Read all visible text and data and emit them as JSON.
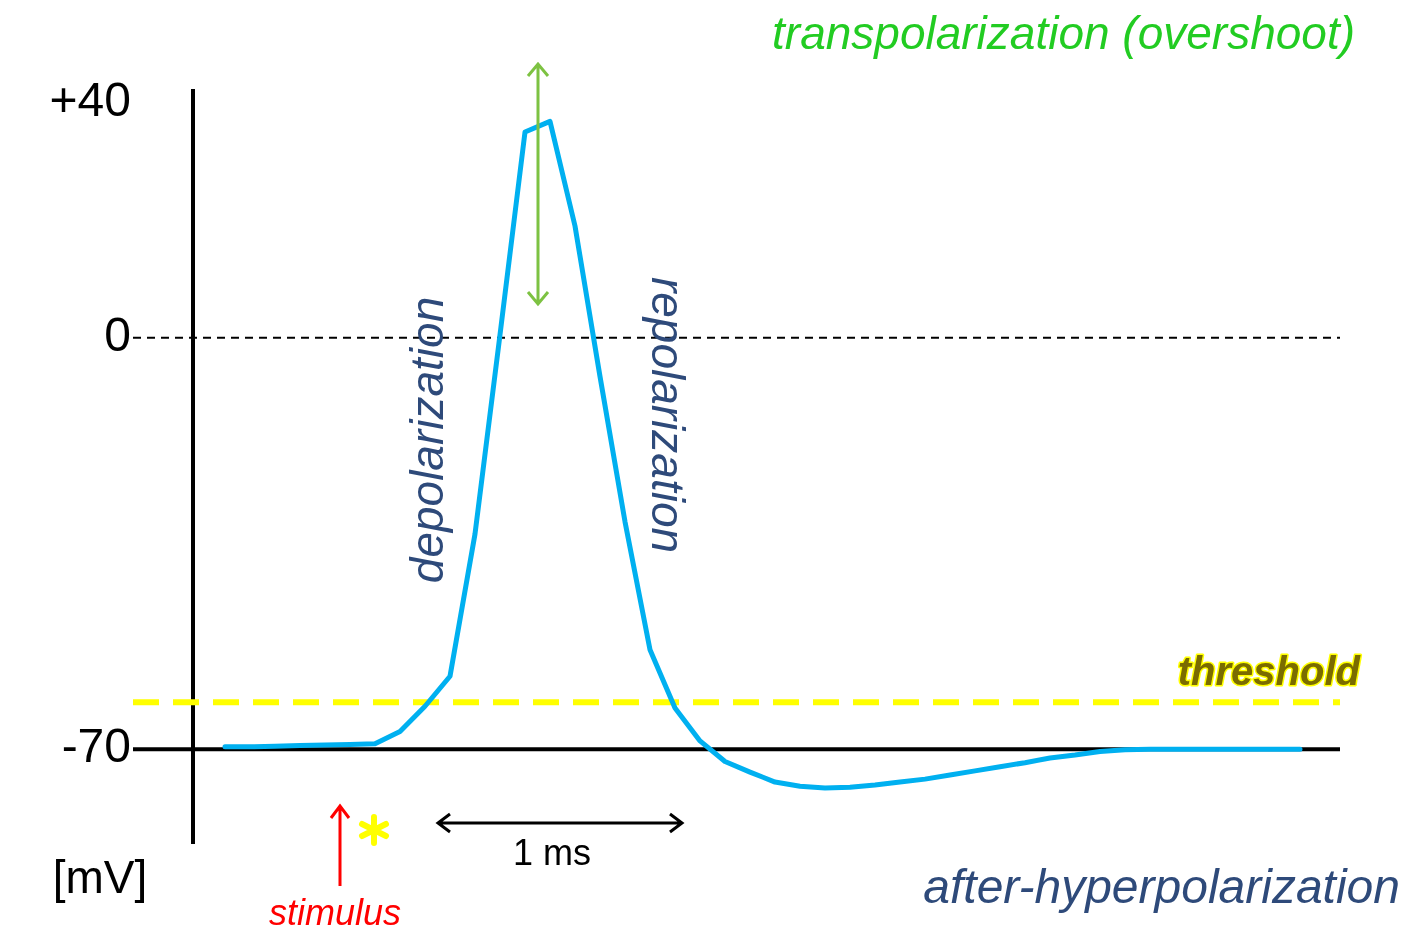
{
  "chart_data": {
    "type": "line",
    "categories": [
      null,
      null,
      null,
      null,
      null,
      null,
      null,
      null,
      null,
      null,
      null,
      null,
      null,
      null,
      null,
      null,
      null,
      null,
      null,
      null,
      null,
      null,
      null,
      null,
      null,
      null,
      null,
      null,
      null,
      null,
      null,
      null,
      null,
      null,
      null,
      null,
      null,
      null,
      null,
      null,
      null,
      null,
      null,
      null
    ],
    "series": [
      {
        "color": "#00b0f0",
        "values": [
          -69.6,
          -69.6,
          -69.5,
          -69.4,
          -69.3,
          -69.2,
          -69.1,
          -67,
          -62.7,
          -57.6,
          -33.4,
          0.5,
          35,
          36.8,
          19,
          -6.6,
          -31.3,
          -53.1,
          -63,
          -68.6,
          -72.1,
          -73.9,
          -75.6,
          -76.3,
          -76.6,
          -76.5,
          -76.1,
          -75.6,
          -75.1,
          -74.4,
          -73.7,
          -73,
          -72.3,
          -71.5,
          -71,
          -70.4,
          -70.1,
          -70,
          -70,
          -70,
          -70,
          -70,
          -70,
          -70
        ]
      }
    ],
    "ylim": [
      -86,
      42
    ],
    "yticks": [
      {
        "value": 40,
        "label": "+40"
      },
      0,
      -70
    ],
    "ylabel": "[mV]",
    "tick_labels": "y",
    "grid": false,
    "marker": "none",
    "line_style": "solid",
    "ref_lines": [
      {
        "axis": "y",
        "value": 0,
        "color": "#000000",
        "line_style": "dashed"
      },
      {
        "axis": "y",
        "value": -62,
        "label": "threshold",
        "color": "#ffff00",
        "line_style": "dashed"
      },
      {
        "axis": "y",
        "value": -70,
        "color": "#000000",
        "line_style": "solid"
      }
    ],
    "annotations": [
      "transpolarization (overshoot)",
      "depolarization",
      "repolarization",
      "1 ms",
      "stimulus",
      "after-hyperpolarization"
    ]
  }
}
